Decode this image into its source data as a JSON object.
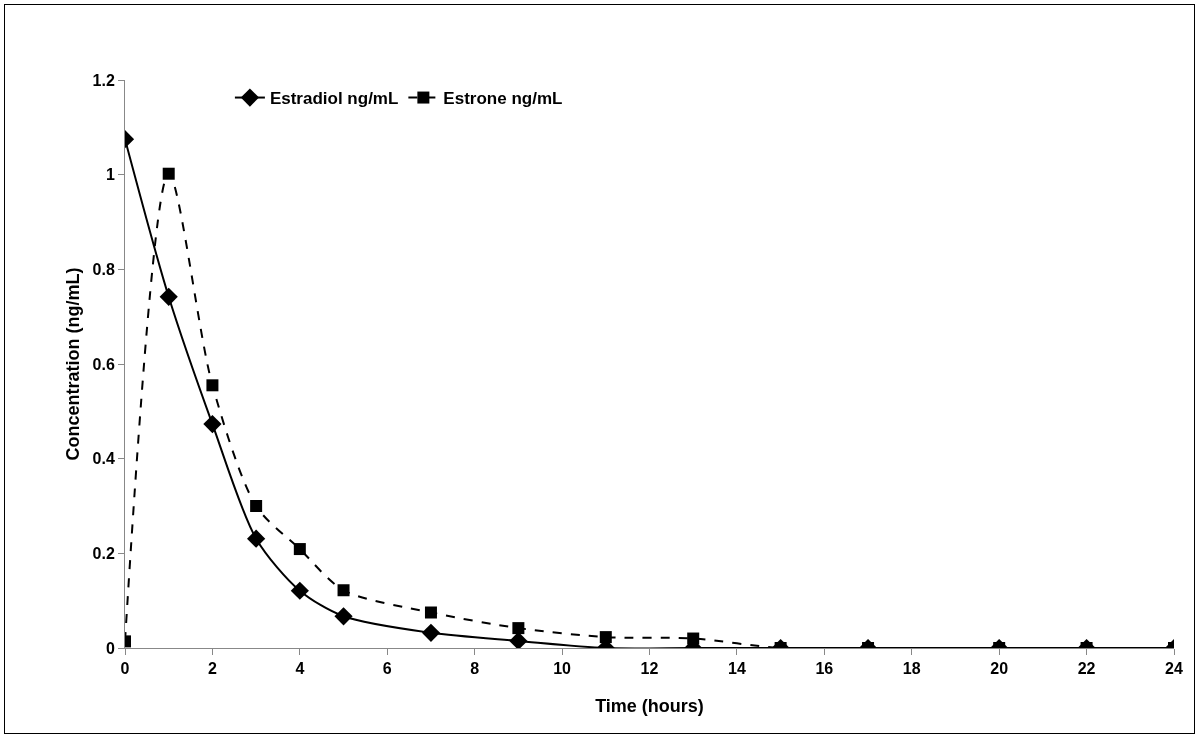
{
  "chart_data": {
    "type": "line",
    "xlabel": "Time (hours)",
    "ylabel": "Concentration (ng/mL)",
    "x": [
      0,
      1,
      2,
      3,
      4,
      5,
      7,
      9,
      11,
      13,
      15,
      17,
      20,
      22,
      24
    ],
    "series": [
      {
        "name": "Estradiol ng/mL",
        "color": "#000000",
        "marker": "diamond",
        "line_style": "solid",
        "values": [
          1.075,
          0.742,
          0.473,
          0.231,
          0.121,
          0.067,
          0.032,
          0.015,
          0,
          0,
          0,
          0,
          0,
          0,
          0
        ]
      },
      {
        "name": "Estrone ng/mL",
        "color": "#000000",
        "marker": "square",
        "line_style": "dashed",
        "values": [
          0.014,
          1.002,
          0.555,
          0.3,
          0.209,
          0.122,
          0.075,
          0.042,
          0.023,
          0.02,
          0,
          0,
          0,
          0,
          0
        ]
      }
    ],
    "xlim": [
      0,
      24
    ],
    "xticks": [
      0,
      2,
      4,
      6,
      8,
      10,
      12,
      14,
      16,
      18,
      20,
      22,
      24
    ],
    "ylim": [
      0,
      1.2
    ],
    "yticks": [
      0,
      0.2,
      0.4,
      0.6,
      0.8,
      1,
      1.2
    ],
    "grid": false,
    "legend": "top"
  }
}
